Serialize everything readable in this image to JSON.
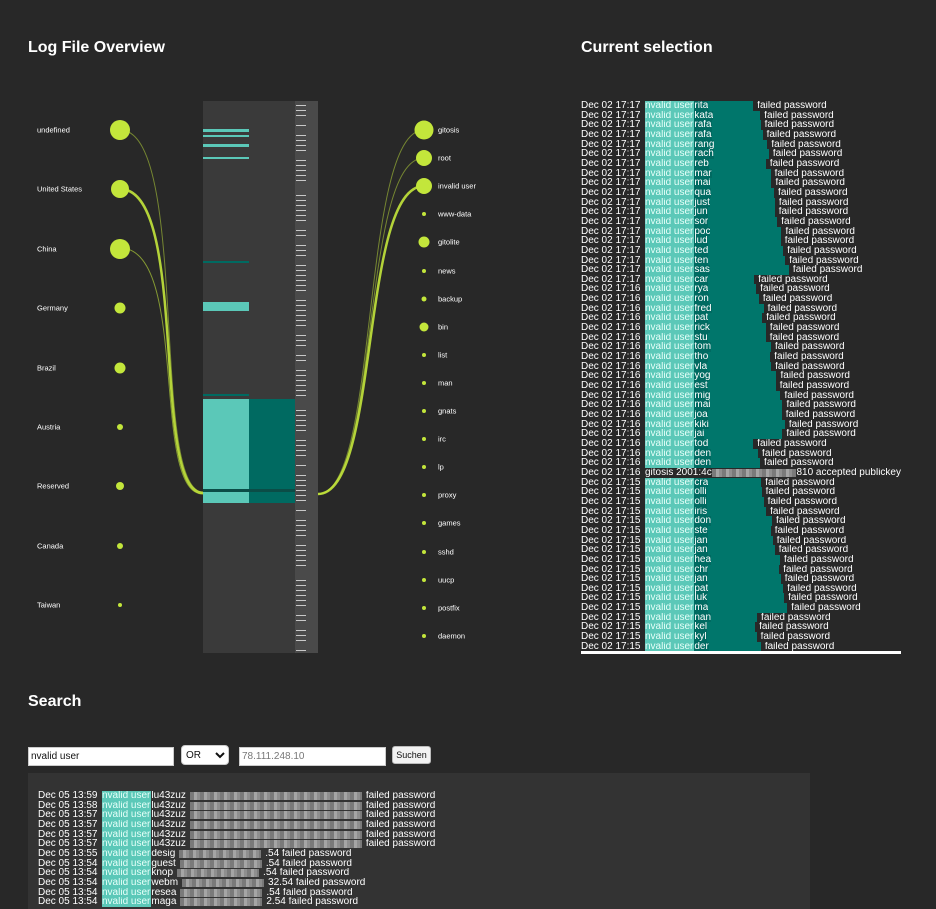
{
  "overview": {
    "title": "Log File Overview",
    "countries": [
      {
        "label": "undefined",
        "size": 20
      },
      {
        "label": "United States",
        "size": 18
      },
      {
        "label": "China",
        "size": 20
      },
      {
        "label": "Germany",
        "size": 11
      },
      {
        "label": "Brazil",
        "size": 11
      },
      {
        "label": "Austria",
        "size": 6
      },
      {
        "label": "Reserved",
        "size": 8
      },
      {
        "label": "Canada",
        "size": 6
      },
      {
        "label": "Taiwan",
        "size": 4
      }
    ],
    "users": [
      {
        "label": "gitosis",
        "size": 19
      },
      {
        "label": "root",
        "size": 16
      },
      {
        "label": "invalid user",
        "size": 16
      },
      {
        "label": "www-data",
        "size": 4
      },
      {
        "label": "gitolite",
        "size": 11
      },
      {
        "label": "news",
        "size": 4
      },
      {
        "label": "backup",
        "size": 5
      },
      {
        "label": "bin",
        "size": 9
      },
      {
        "label": "list",
        "size": 4
      },
      {
        "label": "man",
        "size": 4
      },
      {
        "label": "gnats",
        "size": 4
      },
      {
        "label": "irc",
        "size": 4
      },
      {
        "label": "lp",
        "size": 4
      },
      {
        "label": "proxy",
        "size": 4
      },
      {
        "label": "games",
        "size": 4
      },
      {
        "label": "sshd",
        "size": 4
      },
      {
        "label": "uucp",
        "size": 4
      },
      {
        "label": "postfix",
        "size": 4
      },
      {
        "label": "daemon",
        "size": 4
      }
    ],
    "colors": {
      "dot": "#c3e63b",
      "band": "#5bc8b8",
      "band_dark": "#006a61"
    }
  },
  "selection": {
    "title": "Current selection",
    "lines": [
      {
        "time": "Dec 02 17:17",
        "user": "rita",
        "msg": "failed password"
      },
      {
        "time": "Dec 02 17:17",
        "user": "kata",
        "msg": "failed password"
      },
      {
        "time": "Dec 02 17:17",
        "user": "rafa",
        "msg": "failed password"
      },
      {
        "time": "Dec 02 17:17",
        "user": "rafa",
        "msg": "failed password"
      },
      {
        "time": "Dec 02 17:17",
        "user": "rang",
        "msg": "failed password"
      },
      {
        "time": "Dec 02 17:17",
        "user": "rach",
        "msg": "failed password"
      },
      {
        "time": "Dec 02 17:17",
        "user": "reb",
        "msg": "failed password"
      },
      {
        "time": "Dec 02 17:17",
        "user": "mar",
        "msg": "failed password"
      },
      {
        "time": "Dec 02 17:17",
        "user": "mai",
        "msg": "failed password"
      },
      {
        "time": "Dec 02 17:17",
        "user": "qua",
        "msg": "failed password"
      },
      {
        "time": "Dec 02 17:17",
        "user": "just",
        "msg": "failed password"
      },
      {
        "time": "Dec 02 17:17",
        "user": "jun",
        "msg": "failed password"
      },
      {
        "time": "Dec 02 17:17",
        "user": "sor",
        "msg": "failed password"
      },
      {
        "time": "Dec 02 17:17",
        "user": "poc",
        "msg": "failed password"
      },
      {
        "time": "Dec 02 17:17",
        "user": "lud",
        "msg": "failed password"
      },
      {
        "time": "Dec 02 17:17",
        "user": "ted",
        "msg": "failed password"
      },
      {
        "time": "Dec 02 17:17",
        "user": "ten",
        "msg": "failed password"
      },
      {
        "time": "Dec 02 17:17",
        "user": "sas",
        "msg": "failed password"
      },
      {
        "time": "Dec 02 17:17",
        "user": "car",
        "msg": "failed password"
      },
      {
        "time": "Dec 02 17:16",
        "user": "rya",
        "msg": "failed password"
      },
      {
        "time": "Dec 02 17:16",
        "user": "ron",
        "msg": "failed password"
      },
      {
        "time": "Dec 02 17:16",
        "user": "fred",
        "msg": "failed password"
      },
      {
        "time": "Dec 02 17:16",
        "user": "pat",
        "msg": "failed password"
      },
      {
        "time": "Dec 02 17:16",
        "user": "rick",
        "msg": "failed password"
      },
      {
        "time": "Dec 02 17:16",
        "user": "stu",
        "msg": "failed password"
      },
      {
        "time": "Dec 02 17:16",
        "user": "tom",
        "msg": "failed password"
      },
      {
        "time": "Dec 02 17:16",
        "user": "tho",
        "msg": "failed password"
      },
      {
        "time": "Dec 02 17:16",
        "user": "vla",
        "msg": "failed password"
      },
      {
        "time": "Dec 02 17:16",
        "user": "yog",
        "msg": "failed password"
      },
      {
        "time": "Dec 02 17:16",
        "user": "est",
        "msg": "failed password"
      },
      {
        "time": "Dec 02 17:16",
        "user": "mig",
        "msg": "failed password"
      },
      {
        "time": "Dec 02 17:16",
        "user": "mai",
        "msg": "failed password"
      },
      {
        "time": "Dec 02 17:16",
        "user": "joa",
        "msg": "failed password"
      },
      {
        "time": "Dec 02 17:16",
        "user": "kiki",
        "msg": "failed password"
      },
      {
        "time": "Dec 02 17:16",
        "user": "jai",
        "msg": "failed password"
      },
      {
        "time": "Dec 02 17:16",
        "user": "tod",
        "msg": "failed password"
      },
      {
        "time": "Dec 02 17:16",
        "user": "den",
        "msg": "failed password"
      },
      {
        "time": "Dec 02 17:16",
        "user": "den",
        "msg": "failed password"
      },
      {
        "time": "Dec 02 17:16",
        "special": "gitosis 2001:4c",
        "tail": "810 accepted publickey"
      },
      {
        "time": "Dec 02 17:15",
        "user": "cra",
        "msg": "failed password"
      },
      {
        "time": "Dec 02 17:15",
        "user": "olli",
        "msg": "failed password"
      },
      {
        "time": "Dec 02 17:15",
        "user": "olli",
        "msg": "failed password"
      },
      {
        "time": "Dec 02 17:15",
        "user": "iris",
        "msg": "failed password"
      },
      {
        "time": "Dec 02 17:15",
        "user": "don",
        "msg": "failed password"
      },
      {
        "time": "Dec 02 17:15",
        "user": "ste",
        "msg": "failed password"
      },
      {
        "time": "Dec 02 17:15",
        "user": "jan",
        "msg": "failed password"
      },
      {
        "time": "Dec 02 17:15",
        "user": "jan",
        "msg": "failed password"
      },
      {
        "time": "Dec 02 17:15",
        "user": "hea",
        "msg": "failed password"
      },
      {
        "time": "Dec 02 17:15",
        "user": "chr",
        "msg": "failed password"
      },
      {
        "time": "Dec 02 17:15",
        "user": "jan",
        "msg": "failed password"
      },
      {
        "time": "Dec 02 17:15",
        "user": "pat",
        "msg": "failed password"
      },
      {
        "time": "Dec 02 17:15",
        "user": "luk",
        "msg": "failed password"
      },
      {
        "time": "Dec 02 17:15",
        "user": "ma",
        "msg": "failed password"
      },
      {
        "time": "Dec 02 17:15",
        "user": "nan",
        "msg": "failed password"
      },
      {
        "time": "Dec 02 17:15",
        "user": "kel",
        "msg": "failed password"
      },
      {
        "time": "Dec 02 17:15",
        "user": "kyl",
        "msg": "failed password"
      },
      {
        "time": "Dec 02 17:15",
        "user": "der",
        "msg": "failed password"
      }
    ],
    "highlight": "nvalid user"
  },
  "search": {
    "title": "Search",
    "query": "nvalid user",
    "operator": "OR",
    "ip_value": "78.111.248.10",
    "button": "Suchen",
    "results": [
      {
        "time": "Dec 05 13:59",
        "user": "lu43zuz",
        "msg": "failed password"
      },
      {
        "time": "Dec 05 13:58",
        "user": "lu43zuz",
        "msg": "failed password"
      },
      {
        "time": "Dec 05 13:57",
        "user": "lu43zuz",
        "msg": "failed password"
      },
      {
        "time": "Dec 05 13:57",
        "user": "lu43zuz",
        "msg": "failed password"
      },
      {
        "time": "Dec 05 13:57",
        "user": "lu43zuz",
        "msg": "failed password"
      },
      {
        "time": "Dec 05 13:57",
        "user": "lu43zuz",
        "msg": "failed password"
      },
      {
        "time": "Dec 05 13:55",
        "user": "desig",
        "msg": ".54 failed password"
      },
      {
        "time": "Dec 05 13:54",
        "user": "guest",
        "msg": ".54 failed password"
      },
      {
        "time": "Dec 05 13:54",
        "user": "knop",
        "msg": ".54 failed password"
      },
      {
        "time": "Dec 05 13:54",
        "user": "webm",
        "msg": "32.54 failed password"
      },
      {
        "time": "Dec 05 13:54",
        "user": "resea",
        "msg": ".54 failed password"
      },
      {
        "time": "Dec 05 13:54",
        "user": "maga",
        "msg": "2.54 failed password"
      }
    ]
  }
}
